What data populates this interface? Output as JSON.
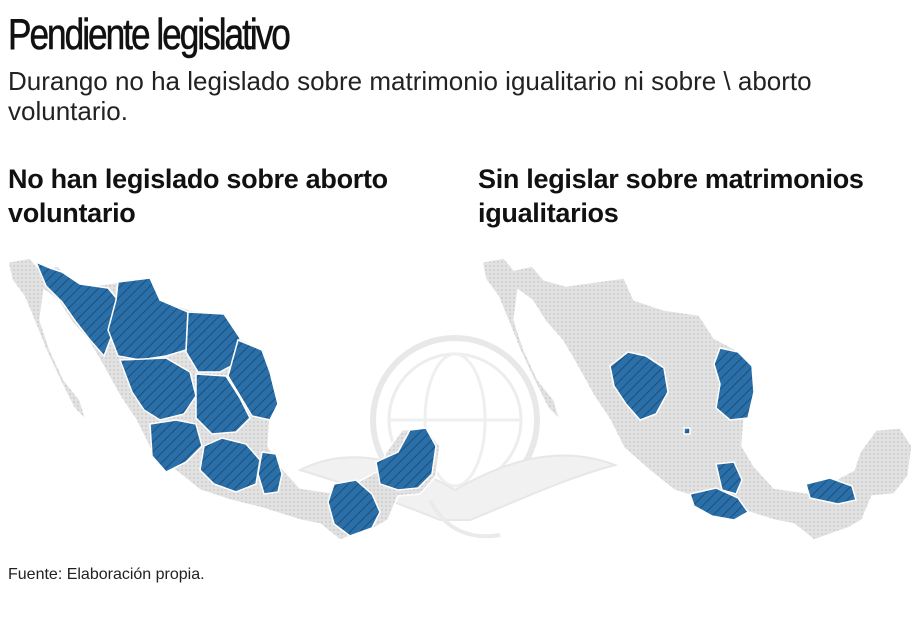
{
  "header": {
    "title": "Pendiente legislativo",
    "subtitle": "Durango no ha legislado sobre matrimonio igualitario ni sobre \\ aborto voluntario."
  },
  "panels": [
    {
      "title": "No han legislado sobre aborto voluntario",
      "highlight_color": "#2a6fa8",
      "base_color": "#dddddd"
    },
    {
      "title": "Sin legislar sobre matrimonios igualitarios",
      "highlight_color": "#2a6fa8",
      "base_color": "#dddddd"
    }
  ],
  "footer": {
    "source": "Fuente: Elaboración propia."
  },
  "icons": {
    "watermark": "eagle-emblem-icon"
  }
}
